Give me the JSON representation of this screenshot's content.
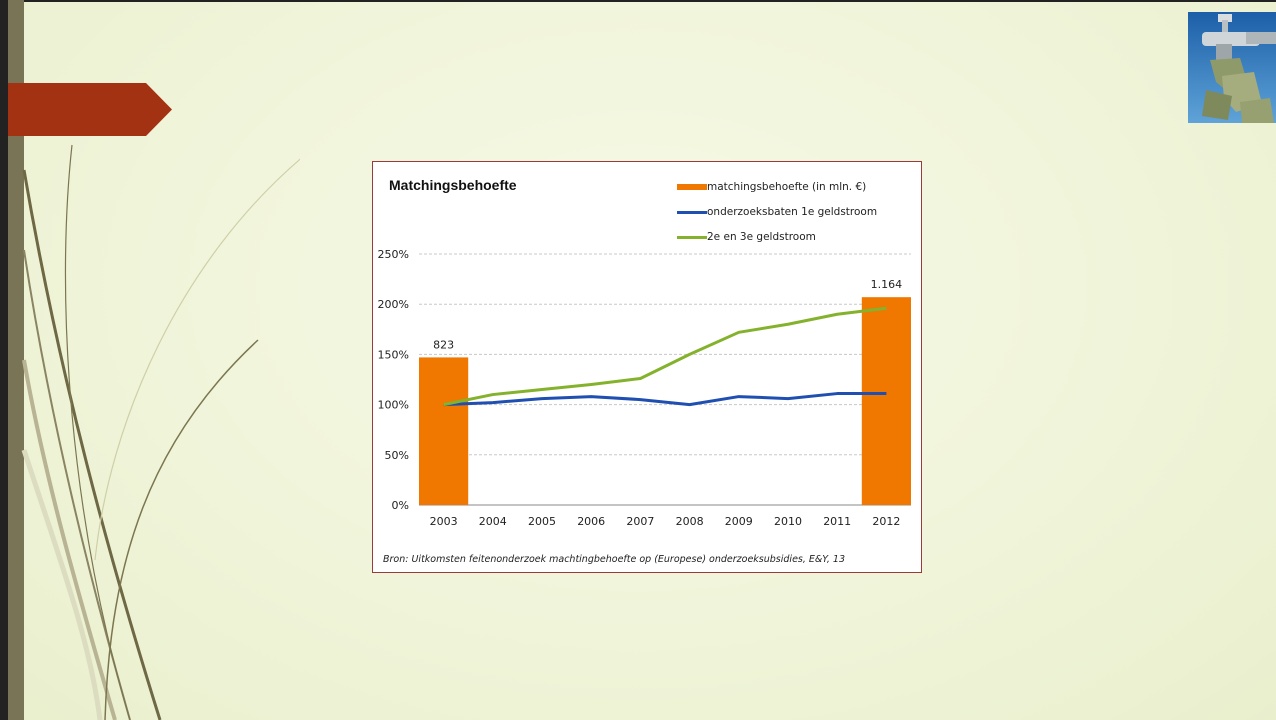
{
  "colors": {
    "accent_arrow": "#a33213",
    "bar": "#f07700",
    "line_blue": "#1f4fb0",
    "line_green": "#84b22c",
    "frame": "#9b3a3a"
  },
  "slide": {
    "logo_icon": "money-tap-icon"
  },
  "chart_data": {
    "type": "bar",
    "title": "Matchingsbehoefte",
    "legend_position": "top-right",
    "grid": true,
    "categories": [
      "2003",
      "2004",
      "2005",
      "2006",
      "2007",
      "2008",
      "2009",
      "2010",
      "2011",
      "2012"
    ],
    "ylim": [
      0,
      250
    ],
    "yticks": [
      "0%",
      "50%",
      "100%",
      "150%",
      "200%",
      "250%"
    ],
    "series": [
      {
        "name": "matchingsbehoefte (in mln. €)",
        "kind": "bar",
        "bar_points": [
          {
            "x": "2003",
            "height_pct": 147,
            "label": "823"
          },
          {
            "x": "2012",
            "height_pct": 207,
            "label": "1.164"
          }
        ]
      },
      {
        "name": "onderzoeksbaten 1e geldstroom",
        "kind": "line",
        "values": [
          100,
          102,
          106,
          108,
          105,
          100,
          108,
          106,
          111,
          111
        ]
      },
      {
        "name": "2e en 3e geldstroom",
        "kind": "line",
        "values": [
          100,
          110,
          115,
          120,
          126,
          150,
          172,
          180,
          190,
          196
        ]
      }
    ],
    "caption": "Bron: Uitkomsten feitenonderzoek machtingbehoefte op (Europese) onderzoeksubsidies, E&Y, 13"
  }
}
